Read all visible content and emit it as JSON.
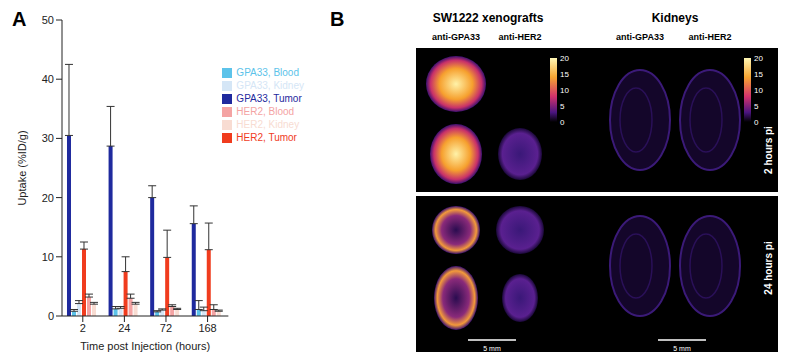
{
  "chart_data": {
    "type": "bar",
    "title": "A",
    "x_label": "Time post Injection (hours)",
    "y_label": "Uptake (%ID/g)",
    "categories": [
      "2",
      "24",
      "72",
      "168"
    ],
    "ylim": [
      0,
      50
    ],
    "yticks": [
      0,
      10,
      20,
      30,
      40,
      50
    ],
    "legend": "upper right",
    "series": [
      {
        "name": "GPA33, Tumor",
        "color": "#1f2a9e",
        "values": [
          30.5,
          28.7,
          20.0,
          15.6
        ],
        "errors": [
          12.0,
          6.7,
          2.0,
          3.0
        ]
      },
      {
        "name": "GPA33, Blood",
        "color": "#5cc3ea",
        "values": [
          0.8,
          1.2,
          0.7,
          1.1
        ],
        "errors": [
          0.3,
          0.4,
          0.2,
          1.5
        ]
      },
      {
        "name": "GPA33, Kidney",
        "color": "#d5e6f6",
        "values": [
          2.1,
          1.3,
          1.0,
          0.9
        ],
        "errors": [
          0.5,
          0.3,
          0.2,
          0.6
        ]
      },
      {
        "name": "HER2, Tumor",
        "color": "#f03c1e",
        "values": [
          11.3,
          7.5,
          9.9,
          11.2
        ],
        "errors": [
          1.2,
          2.5,
          4.6,
          4.5
        ]
      },
      {
        "name": "HER2, Blood",
        "color": "#f4a3a3",
        "values": [
          3.2,
          3.0,
          1.6,
          1.1
        ],
        "errors": [
          0.5,
          0.7,
          0.3,
          0.8
        ]
      },
      {
        "name": "HER2, Kidney",
        "color": "#f8dcd2",
        "values": [
          2.0,
          2.0,
          1.1,
          0.8
        ],
        "errors": [
          0.3,
          0.3,
          0.2,
          0.2
        ]
      }
    ]
  },
  "panel_b": {
    "label": "B",
    "rows": [
      "2 hours pi",
      "24 hours pi"
    ],
    "sections": [
      {
        "title": "SW1222 xenografts",
        "columns": [
          "anti-GPA33",
          "anti-HER2"
        ],
        "scale_bar": "5 mm",
        "colorbar": {
          "range": [
            0,
            20
          ],
          "ticks": [
            0,
            5,
            10,
            15,
            20
          ]
        }
      },
      {
        "title": "Kidneys",
        "columns": [
          "anti-GPA33",
          "anti-HER2"
        ],
        "scale_bar": "5 mm",
        "colorbar": {
          "range": [
            0,
            20
          ],
          "ticks": [
            0,
            5,
            10,
            15,
            20
          ]
        }
      }
    ]
  }
}
